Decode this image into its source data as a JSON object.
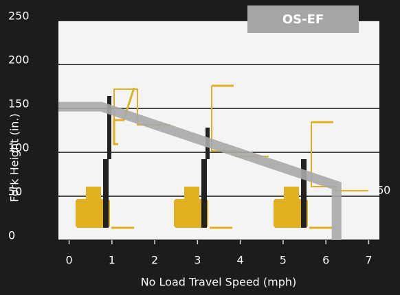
{
  "chart_data": {
    "type": "line",
    "label": "OS-EF",
    "xlabel": "No Load Travel Speed (mph)",
    "ylabel": "Fork Height (in.)",
    "x": [
      -0.25,
      0.75,
      6.25,
      6.25
    ],
    "series": [
      {
        "color": "#a9a9a9",
        "values": [
          152,
          152,
          62,
          0
        ]
      }
    ],
    "annotation": "60",
    "xlim": [
      -0.25,
      7.25
    ],
    "ylim": [
      0,
      250
    ],
    "xticks": [
      0,
      1,
      2,
      3,
      4,
      5,
      6,
      7
    ],
    "yticks": [
      0,
      50,
      100,
      150,
      200,
      250
    ],
    "grid": true
  }
}
